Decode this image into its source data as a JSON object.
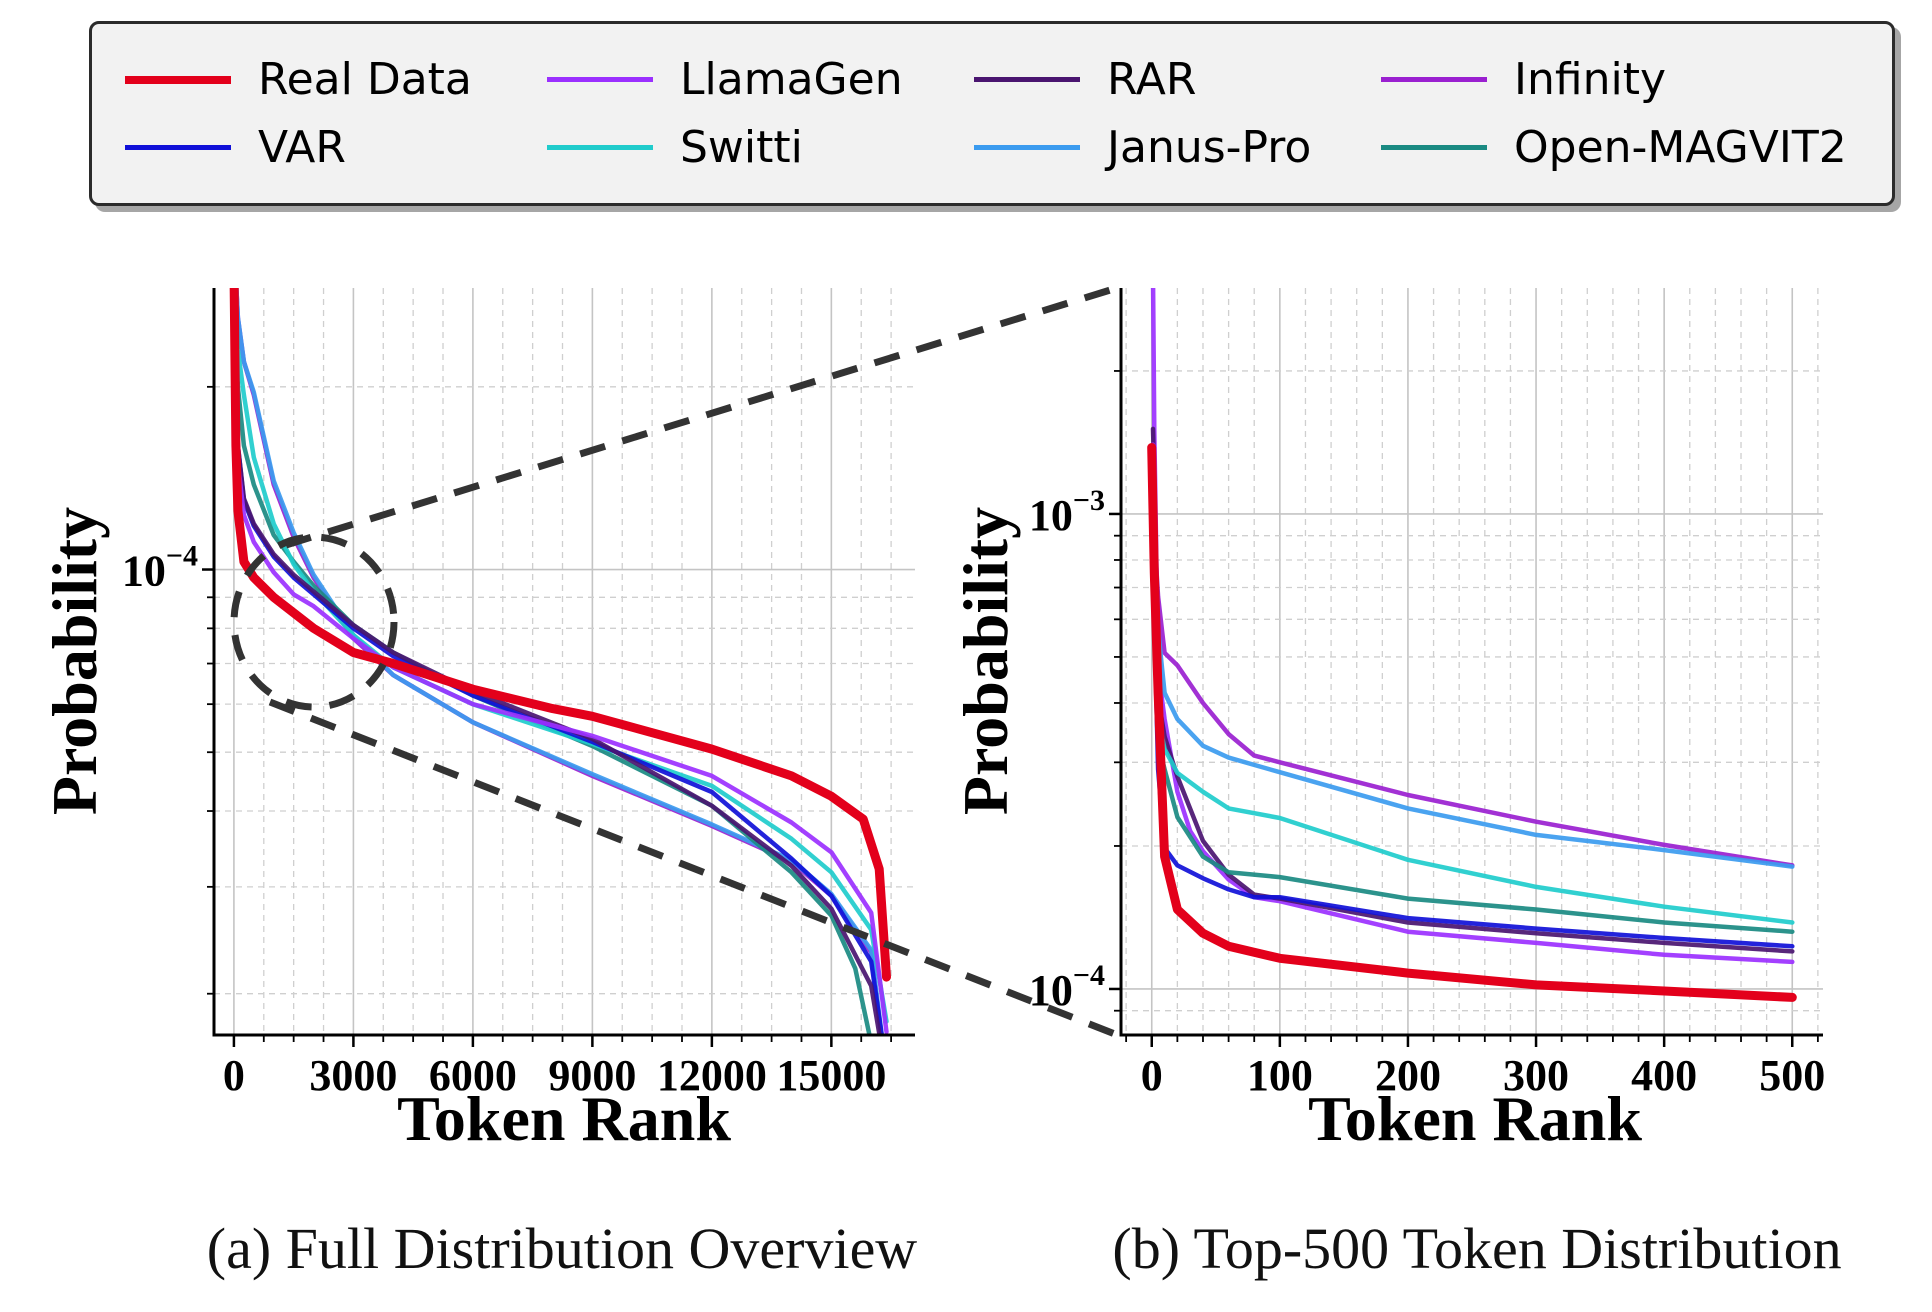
{
  "legend": {
    "items": [
      {
        "label": "Real Data",
        "color": "#e3001b",
        "weight": "thick"
      },
      {
        "label": "LlamaGen",
        "color": "#9b30ff",
        "weight": "normal"
      },
      {
        "label": "RAR",
        "color": "#4a1570",
        "weight": "normal"
      },
      {
        "label": "Infinity",
        "color": "#9a20d0",
        "weight": "normal"
      },
      {
        "label": "VAR",
        "color": "#1010d8",
        "weight": "normal"
      },
      {
        "label": "Switti",
        "color": "#20cccc",
        "weight": "normal"
      },
      {
        "label": "Janus-Pro",
        "color": "#3b9bef",
        "weight": "normal"
      },
      {
        "label": "Open-MAGVIT2",
        "color": "#1a8a82",
        "weight": "normal"
      }
    ]
  },
  "captions": {
    "a": "(a) Full Distribution Overview",
    "b": "(b) Top-500 Token Distribution"
  },
  "chart_data": [
    {
      "id": "full",
      "type": "line",
      "title": "",
      "xlabel": "Token Rank",
      "ylabel": "Probability",
      "yscale": "log",
      "xlim": [
        -500,
        17100
      ],
      "ylim": [
        1.71e-05,
        0.000291
      ],
      "xticks": [
        0,
        3000,
        6000,
        9000,
        12000,
        15000
      ],
      "xtick_labels": [
        "0",
        "3000",
        "6000",
        "9000",
        "12000",
        "15000"
      ],
      "x_minor_step": 750,
      "yticks_major": [
        0.0001
      ],
      "ytick_labels": [
        {
          "base": "10",
          "exp": "−4"
        }
      ],
      "yticks_minor": [
        2e-05,
        3e-05,
        4e-05,
        5e-05,
        6e-05,
        7e-05,
        8e-05,
        9e-05,
        0.0002
      ],
      "grid": true,
      "series": [
        {
          "name": "Infinity",
          "x": [
            0,
            100,
            250,
            500,
            1000,
            1500,
            2000,
            3000,
            4000,
            6000,
            9000,
            12000,
            14000,
            15000,
            16000,
            16300
          ],
          "y": [
            0.00035,
            0.00026,
            0.00022,
            0.000194,
            0.000138,
            0.000113,
            9.7e-05,
            7.7e-05,
            6.7e-05,
            5.6e-05,
            4.57e-05,
            3.78e-05,
            3.3e-05,
            2.9e-05,
            2.34e-05,
            1.6e-05
          ]
        },
        {
          "name": "Janus-Pro",
          "x": [
            0,
            100,
            250,
            500,
            1000,
            1500,
            2000,
            3000,
            4000,
            6000,
            9000,
            12000,
            14000,
            15000,
            16000,
            16320
          ],
          "y": [
            0.00035,
            0.00026,
            0.00022,
            0.000196,
            0.00014,
            0.000115,
            9.8e-05,
            7.8e-05,
            6.7e-05,
            5.6e-05,
            4.6e-05,
            3.8e-05,
            3.32e-05,
            2.92e-05,
            2.36e-05,
            1.6e-05
          ]
        },
        {
          "name": "Open-MAGVIT2",
          "x": [
            0,
            100,
            250,
            500,
            1000,
            1500,
            2000,
            3000,
            4000,
            6000,
            9000,
            12000,
            14000,
            15000,
            15600,
            16050
          ],
          "y": [
            0.0003,
            0.0002,
            0.00016,
            0.000138,
            0.000114,
            0.000103,
            9.4e-05,
            8.1e-05,
            7.3e-05,
            6.2e-05,
            5.12e-05,
            4.08e-05,
            3.17e-05,
            2.69e-05,
            2.2e-05,
            1.6e-05
          ]
        },
        {
          "name": "Switti",
          "x": [
            0,
            100,
            250,
            500,
            1000,
            1500,
            2000,
            3000,
            4000,
            6000,
            9000,
            12000,
            14000,
            15000,
            16000,
            16384
          ],
          "y": [
            0.00033,
            0.00023,
            0.000194,
            0.000153,
            0.000119,
            0.000102,
            9.2e-05,
            7.8e-05,
            6.9e-05,
            6e-05,
            5.16e-05,
            4.4e-05,
            3.6e-05,
            3.17e-05,
            2.55e-05,
            1.8e-05
          ]
        },
        {
          "name": "VAR",
          "x": [
            0,
            100,
            250,
            500,
            1000,
            1500,
            2000,
            3000,
            4000,
            6000,
            9000,
            12000,
            14000,
            15000,
            16000,
            16300
          ],
          "y": [
            0.00024,
            0.00016,
            0.00013,
            0.000118,
            0.000105,
            9.7e-05,
            9.1e-05,
            8e-05,
            7.2e-05,
            6.2e-05,
            5.2e-05,
            4.3e-05,
            3.34e-05,
            2.9e-05,
            2.26e-05,
            1.65e-05
          ]
        },
        {
          "name": "RAR",
          "x": [
            0,
            100,
            250,
            500,
            1000,
            1500,
            2000,
            3000,
            4000,
            6000,
            9000,
            12000,
            14000,
            15000,
            16000,
            16250
          ],
          "y": [
            0.00024,
            0.00016,
            0.000131,
            0.000119,
            0.000106,
            9.8e-05,
            9.2e-05,
            8.1e-05,
            7.3e-05,
            6.3e-05,
            5.26e-05,
            4.08e-05,
            3.25e-05,
            2.76e-05,
            2.06e-05,
            1.65e-05
          ]
        },
        {
          "name": "LlamaGen",
          "x": [
            0,
            100,
            250,
            500,
            1000,
            1500,
            2000,
            3000,
            4000,
            6000,
            9000,
            12000,
            14000,
            15000,
            16000,
            16384
          ],
          "y": [
            0.00024,
            0.00015,
            0.000123,
            0.000111,
            9.9e-05,
            9.1e-05,
            8.7e-05,
            7.7e-05,
            6.9e-05,
            6e-05,
            5.32e-05,
            4.57e-05,
            3.83e-05,
            3.42e-05,
            2.72e-05,
            1.73e-05
          ]
        },
        {
          "name": "Real Data",
          "x": [
            0,
            50,
            100,
            250,
            500,
            1000,
            2000,
            3000,
            4000,
            6000,
            8000,
            9000,
            12000,
            14000,
            15000,
            15800,
            16200,
            16384
          ],
          "y": [
            0.00032,
            0.00016,
            0.000125,
            0.000103,
            9.7e-05,
            9e-05,
            8e-05,
            7.3e-05,
            7e-05,
            6.35e-05,
            5.9e-05,
            5.73e-05,
            5.06e-05,
            4.57e-05,
            4.23e-05,
            3.88e-05,
            3.21e-05,
            2.13e-05
          ]
        }
      ]
    },
    {
      "id": "top500",
      "type": "line",
      "title": "",
      "xlabel": "Token Rank",
      "ylabel": "Probability",
      "yscale": "log",
      "xlim": [
        -24,
        524
      ],
      "ylim": [
        8e-05,
        0.00299
      ],
      "xticks": [
        0,
        100,
        200,
        300,
        400,
        500
      ],
      "xtick_labels": [
        "0",
        "100",
        "200",
        "300",
        "400",
        "500"
      ],
      "x_minor_step": 20,
      "yticks_major": [
        0.001,
        0.0001
      ],
      "ytick_labels": [
        {
          "base": "10",
          "exp": "−3"
        },
        {
          "base": "10",
          "exp": "−4"
        }
      ],
      "yticks_minor": [
        9e-05,
        0.0002,
        0.0003,
        0.0004,
        0.0005,
        0.0006,
        0.0007,
        0.0008,
        0.0009,
        0.002
      ],
      "grid": true,
      "series": [
        {
          "name": "LlamaGen",
          "x": [
            0,
            1,
            2,
            5,
            10,
            20,
            30,
            40,
            60,
            80,
            100,
            200,
            300,
            400,
            500
          ],
          "y": [
            0.0035,
            0.0032,
            0.0015,
            0.00047,
            0.00037,
            0.00026,
            0.000215,
            0.000195,
            0.00017,
            0.000156,
            0.000153,
            0.000132,
            0.000125,
            0.000118,
            0.000114
          ]
        },
        {
          "name": "RAR",
          "x": [
            1,
            2,
            5,
            10,
            20,
            40,
            60,
            80,
            100,
            200,
            300,
            400,
            500
          ],
          "y": [
            0.00151,
            0.0012,
            0.00041,
            0.00034,
            0.00028,
            0.000205,
            0.000174,
            0.000158,
            0.000155,
            0.000138,
            0.000131,
            0.000125,
            0.00012
          ]
        },
        {
          "name": "Infinity",
          "x": [
            1,
            2,
            5,
            10,
            20,
            40,
            60,
            80,
            100,
            200,
            300,
            400,
            500
          ],
          "y": [
            0.0014,
            0.0009,
            0.00067,
            0.00051,
            0.00048,
            0.0004,
            0.000344,
            0.00031,
            0.0003,
            0.000256,
            0.000225,
            0.000201,
            0.000182
          ]
        },
        {
          "name": "Janus-Pro",
          "x": [
            1,
            2,
            5,
            10,
            20,
            40,
            60,
            100,
            200,
            300,
            400,
            500
          ],
          "y": [
            0.0012,
            0.0008,
            0.00057,
            0.00042,
            0.00037,
            0.000325,
            0.000307,
            0.000286,
            0.00024,
            0.000211,
            0.000196,
            0.000181
          ]
        },
        {
          "name": "Switti",
          "x": [
            1,
            2,
            5,
            10,
            20,
            40,
            60,
            100,
            200,
            300,
            400,
            500
          ],
          "y": [
            0.0011,
            0.0007,
            0.00037,
            0.00032,
            0.000285,
            0.00026,
            0.00024,
            0.000229,
            0.000187,
            0.000164,
            0.000149,
            0.000138
          ]
        },
        {
          "name": "Open-MAGVIT2",
          "x": [
            1,
            2,
            5,
            10,
            20,
            40,
            60,
            100,
            200,
            300,
            400,
            500
          ],
          "y": [
            0.0011,
            0.0007,
            0.00033,
            0.00029,
            0.00023,
            0.00019,
            0.000176,
            0.000172,
            0.000155,
            0.000147,
            0.000138,
            0.000132
          ]
        },
        {
          "name": "VAR",
          "x": [
            1,
            2,
            5,
            10,
            20,
            40,
            60,
            80,
            100,
            200,
            300,
            400,
            500
          ],
          "y": [
            0.0011,
            0.0006,
            0.00029,
            0.000198,
            0.000182,
            0.000171,
            0.000162,
            0.000156,
            0.000156,
            0.000141,
            0.000134,
            0.000128,
            0.000123
          ]
        },
        {
          "name": "Real Data",
          "x": [
            0,
            2,
            5,
            10,
            20,
            40,
            60,
            100,
            200,
            300,
            400,
            500
          ],
          "y": [
            0.00138,
            0.00075,
            0.00042,
            0.00019,
            0.000147,
            0.000131,
            0.000123,
            0.000116,
            0.000108,
            0.000102,
            9.9e-05,
            9.6e-05
          ]
        }
      ]
    }
  ]
}
